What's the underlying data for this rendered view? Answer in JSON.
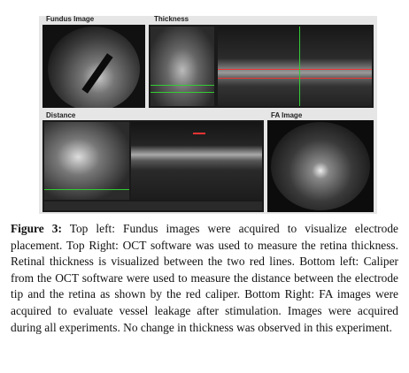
{
  "figure": {
    "panels": [
      {
        "label": "Fundus Image"
      },
      {
        "label": "Thickness"
      },
      {
        "label": "Distance"
      },
      {
        "label": "FA Image"
      }
    ]
  },
  "caption": {
    "label": "Figure 3:",
    "text": "Top left: Fundus images were acquired to visualize electrode placement. Top Right: OCT software was used to measure the retina thickness. Retinal thickness is visualized between the two red lines. Bottom left: Caliper from the OCT software were used to measure the distance between the electrode tip and the retina as shown by the red caliper. Bottom Right: FA images were acquired to evaluate vessel leakage after stimulation. Images were acquired during all experiments. No change in thickness was observed in this experiment."
  }
}
